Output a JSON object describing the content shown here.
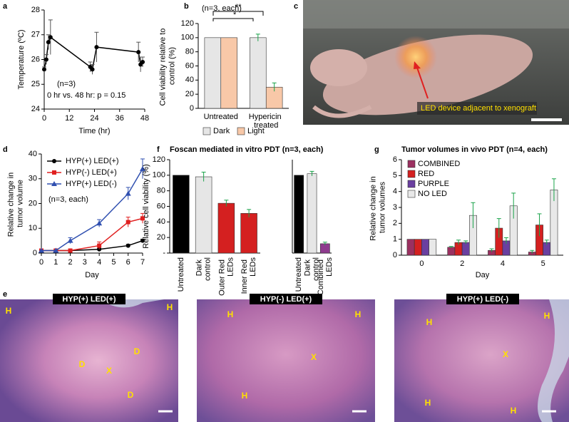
{
  "chart_data": [
    {
      "type": "line",
      "label": "a",
      "ylabel": "Temperature (ºC)",
      "xlabel": "Time (hr)",
      "x": [
        0,
        1,
        2,
        3,
        22,
        23,
        25,
        45,
        46,
        47
      ],
      "series": [
        {
          "color": "#000000",
          "marker": "circle",
          "values": [
            25.6,
            26.0,
            26.7,
            26.9,
            25.7,
            25.6,
            26.5,
            26.3,
            25.8,
            25.9
          ],
          "errors": [
            0.1,
            0.2,
            0.3,
            0.7,
            0.2,
            0.2,
            0.6,
            0.4,
            0.3,
            0.2
          ]
        }
      ],
      "xlim": [
        0,
        48
      ],
      "xticks": [
        0,
        12,
        24,
        36,
        48
      ],
      "ylim": [
        24,
        28
      ],
      "yticks": [
        24,
        25,
        26,
        27,
        28
      ],
      "error_color": "#555555",
      "annotations": [
        "(n=3)",
        "0 hr vs. 48 hr: p = 0.15"
      ]
    },
    {
      "type": "bar",
      "label": "b",
      "ylabel": "Cell viability relative to control (%)",
      "categories": [
        "Untreated",
        "Hypericin treated"
      ],
      "series": [
        {
          "name": "Dark",
          "color": "#e6e6e6",
          "values": [
            100,
            100
          ],
          "errors": [
            0,
            5
          ]
        },
        {
          "name": "Light",
          "color": "#f8c8a8",
          "values": [
            100,
            30
          ],
          "errors": [
            0,
            6
          ]
        }
      ],
      "ylim": [
        0,
        120
      ],
      "yticks": [
        0,
        20,
        40,
        60,
        80,
        100,
        120
      ],
      "error_color": "#1aa34a",
      "legend": "bottom",
      "annotations": [
        "(n=3, each)",
        "*",
        "**"
      ]
    },
    {
      "type": "line",
      "label": "d",
      "ylabel": "Relative change in tumor volume",
      "xlabel": "Day",
      "x": [
        0,
        1,
        2,
        4,
        6,
        7
      ],
      "series": [
        {
          "name": "HYP(+) LED(+)",
          "color": "#000000",
          "marker": "circle",
          "values": [
            1,
            1,
            1,
            1.5,
            3,
            5
          ],
          "errors": [
            0,
            0,
            0,
            0.3,
            0.5,
            0.6
          ]
        },
        {
          "name": "HYP(-) LED(+)",
          "color": "#e02020",
          "marker": "square",
          "values": [
            1,
            1,
            1,
            3,
            12.5,
            14
          ],
          "errors": [
            0,
            0,
            0.3,
            1.5,
            2,
            2
          ]
        },
        {
          "name": "HYP(+) LED(-)",
          "color": "#3050b0",
          "marker": "triangle",
          "values": [
            1,
            1,
            5,
            12,
            24,
            34
          ],
          "errors": [
            0,
            0,
            1.2,
            1.5,
            2.5,
            4
          ]
        }
      ],
      "xlim": [
        0,
        7
      ],
      "xticks": [
        0,
        1,
        2,
        3,
        4,
        5,
        6,
        7
      ],
      "ylim": [
        0,
        40
      ],
      "yticks": [
        0,
        10,
        20,
        30,
        40
      ],
      "legend": "upper-left",
      "annotations": [
        "(n=3, each)"
      ]
    },
    {
      "type": "bar",
      "label": "f",
      "title": "Foscan mediated in vitro PDT (n=3, each)",
      "ylabel": "Relative cell viability (%)",
      "categories": [
        "Untreated",
        "Dark control",
        "Outer Red LEDs",
        "Inner Red LEDs"
      ],
      "values": [
        100,
        98,
        64,
        51
      ],
      "errors": [
        0,
        6,
        4,
        5
      ],
      "colors": [
        "#000000",
        "#e6e6e6",
        "#d42020",
        "#d42020"
      ],
      "ylim": [
        0,
        120
      ],
      "yticks": [
        {
          "value": 0,
          "label": "-"
        },
        20,
        40,
        60,
        80,
        100,
        120
      ],
      "error_color": "#1aa34a"
    },
    {
      "type": "bar",
      "categories": [
        "Untreated",
        "Dark control",
        "Combined LEDs"
      ],
      "values": [
        100,
        102,
        12
      ],
      "errors": [
        0,
        3,
        2
      ],
      "colors": [
        "#000000",
        "#e6e6e6",
        "#8e3a8e"
      ],
      "ylim": [
        0,
        120
      ],
      "error_color": "#1aa34a"
    },
    {
      "type": "bar",
      "label": "g",
      "title": "Tumor volumes in vivo PDT (n=4, each)",
      "ylabel": "Relative change in tumor volumes",
      "xlabel": "Day",
      "categories": [
        "0",
        "2",
        "4",
        "5"
      ],
      "series": [
        {
          "name": "COMBINED",
          "color": "#9b3060",
          "values": [
            1,
            0.5,
            0.3,
            0.2
          ],
          "errors": [
            0,
            0.05,
            0.1,
            0.1
          ]
        },
        {
          "name": "RED",
          "color": "#d42020",
          "values": [
            1,
            0.8,
            1.7,
            1.9
          ],
          "errors": [
            0,
            0.15,
            0.6,
            0.7
          ]
        },
        {
          "name": "PURPLE",
          "color": "#6a3fa0",
          "values": [
            1,
            0.8,
            0.9,
            0.8
          ],
          "errors": [
            0,
            0.1,
            0.2,
            0.15
          ]
        },
        {
          "name": "NO LED",
          "color": "#e8e8e8",
          "values": [
            1,
            2.5,
            3.1,
            4.1
          ],
          "errors": [
            0,
            0.8,
            0.8,
            0.7
          ]
        }
      ],
      "ylim": [
        0,
        6
      ],
      "yticks": [
        0,
        1,
        2,
        3,
        4,
        5,
        6
      ],
      "error_color": "#1aa34a",
      "legend": "upper-left"
    }
  ],
  "photo": {
    "label": "c",
    "caption": "LED device adjacent to xenograft"
  },
  "histology": {
    "label": "e",
    "images": [
      {
        "title": "HYP(+) LED(+)",
        "markers": [
          "H",
          "H",
          "D",
          "D",
          "X",
          "D"
        ]
      },
      {
        "title": "HYP(-) LED(+)",
        "markers": [
          "H",
          "H",
          "X",
          "H"
        ]
      },
      {
        "title": "HYP(+) LED(-)",
        "markers": [
          "H",
          "H",
          "X",
          "H",
          "H"
        ]
      }
    ]
  }
}
